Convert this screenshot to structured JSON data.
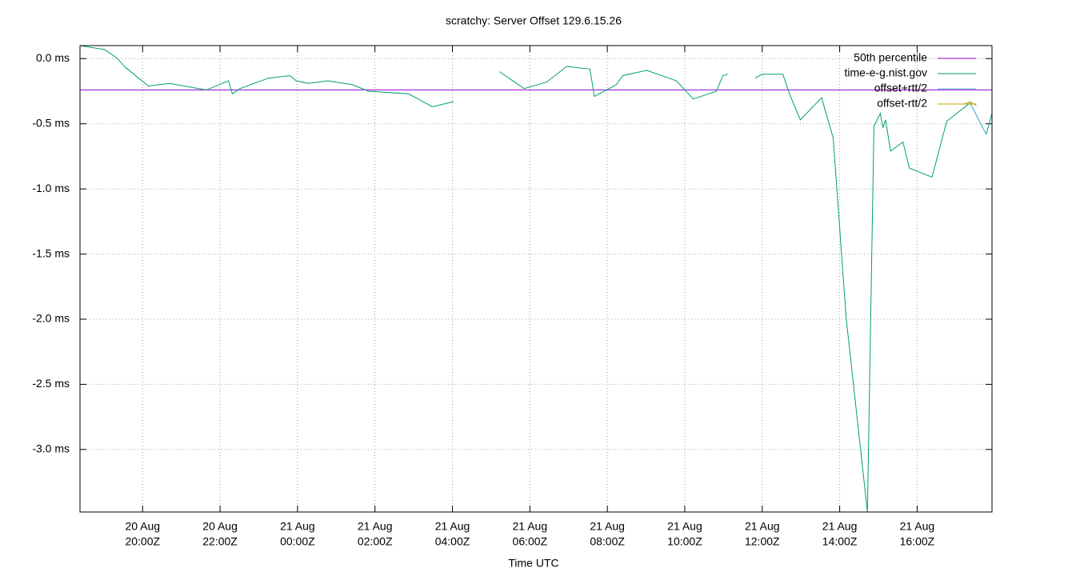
{
  "chart_data": {
    "type": "line",
    "title": "scratchy: Server Offset 129.6.15.26",
    "xlabel": "Time UTC",
    "xlim": [
      "20 Aug 18:23Z",
      "21 Aug 17:56Z"
    ],
    "xticks": [
      {
        "value": "20 Aug 20:00Z",
        "label": [
          "20 Aug",
          "20:00Z"
        ]
      },
      {
        "value": "20 Aug 22:00Z",
        "label": [
          "20 Aug",
          "22:00Z"
        ]
      },
      {
        "value": "21 Aug 00:00Z",
        "label": [
          "21 Aug",
          "00:00Z"
        ]
      },
      {
        "value": "21 Aug 02:00Z",
        "label": [
          "21 Aug",
          "02:00Z"
        ]
      },
      {
        "value": "21 Aug 04:00Z",
        "label": [
          "21 Aug",
          "04:00Z"
        ]
      },
      {
        "value": "21 Aug 06:00Z",
        "label": [
          "21 Aug",
          "06:00Z"
        ]
      },
      {
        "value": "21 Aug 08:00Z",
        "label": [
          "21 Aug",
          "08:00Z"
        ]
      },
      {
        "value": "21 Aug 10:00Z",
        "label": [
          "21 Aug",
          "10:00Z"
        ]
      },
      {
        "value": "21 Aug 12:00Z",
        "label": [
          "21 Aug",
          "12:00Z"
        ]
      },
      {
        "value": "21 Aug 14:00Z",
        "label": [
          "21 Aug",
          "14:00Z"
        ]
      },
      {
        "value": "21 Aug 16:00Z",
        "label": [
          "21 Aug",
          "16:00Z"
        ]
      }
    ],
    "ylim": [
      -3.48,
      0.1
    ],
    "yticks": [
      {
        "value": 0,
        "label": "0.0 ms"
      },
      {
        "value": -0.5,
        "label": "-0.5 ms"
      },
      {
        "value": -1,
        "label": "-1.0 ms"
      },
      {
        "value": -1.5,
        "label": "-1.5 ms"
      },
      {
        "value": -2,
        "label": "-2.0 ms"
      },
      {
        "value": -2.5,
        "label": "-2.5 ms"
      },
      {
        "value": -3,
        "label": "-3.0 ms"
      }
    ],
    "grid": true,
    "legend": "top-right",
    "series": [
      {
        "name": "50th percentile",
        "color": "#9400d3",
        "x": [
          "20 Aug 18:23Z",
          "21 Aug 17:56Z"
        ],
        "values": [
          -0.24,
          -0.24
        ]
      },
      {
        "name": "time-e-g.nist.gov",
        "color": "#009e73",
        "x": [
          "20 Aug 18:23Z",
          "20 Aug 19:01Z",
          "20 Aug 19:19Z",
          "20 Aug 19:34Z",
          "20 Aug 20:09Z",
          "20 Aug 20:42Z",
          "20 Aug 21:04Z",
          "20 Aug 21:39Z",
          "20 Aug 22:13Z",
          "20 Aug 22:19Z",
          "20 Aug 22:31Z",
          "20 Aug 23:15Z",
          "20 Aug 23:48Z",
          "20 Aug 23:58Z",
          "21 Aug 00:17Z",
          "21 Aug 00:47Z",
          "21 Aug 01:25Z",
          "21 Aug 01:50Z",
          "21 Aug 02:52Z",
          "21 Aug 03:29Z",
          "21 Aug 04:02Z",
          "21 Aug 04:40Z",
          "21 Aug 05:13Z",
          "21 Aug 05:51Z",
          "21 Aug 06:26Z",
          "21 Aug 06:57Z",
          "21 Aug 07:33Z",
          "21 Aug 07:40Z",
          "21 Aug 08:14Z",
          "21 Aug 08:24Z",
          "21 Aug 09:01Z",
          "21 Aug 09:47Z",
          "21 Aug 10:13Z",
          "21 Aug 10:49Z",
          "21 Aug 10:59Z",
          "21 Aug 11:07Z",
          "21 Aug 11:30Z",
          "21 Aug 11:49Z",
          "21 Aug 12:00Z",
          "21 Aug 12:32Z",
          "21 Aug 12:43Z",
          "21 Aug 12:59Z",
          "21 Aug 13:32Z",
          "21 Aug 13:50Z",
          "21 Aug 14:10Z",
          "21 Aug 14:43Z",
          "21 Aug 14:53Z",
          "21 Aug 15:03Z",
          "21 Aug 15:07Z",
          "21 Aug 15:11Z",
          "21 Aug 15:19Z",
          "21 Aug 15:38Z",
          "21 Aug 15:48Z",
          "21 Aug 16:23Z",
          "21 Aug 16:46Z",
          "21 Aug 17:22Z",
          "21 Aug 17:47Z",
          "21 Aug 17:56Z"
        ],
        "values": [
          0.1,
          0.07,
          0.01,
          -0.07,
          -0.21,
          -0.19,
          -0.21,
          -0.24,
          -0.17,
          -0.27,
          -0.23,
          -0.15,
          -0.13,
          -0.17,
          -0.19,
          -0.17,
          -0.2,
          -0.25,
          -0.27,
          -0.37,
          -0.33,
          null,
          -0.1,
          -0.23,
          -0.18,
          -0.06,
          -0.08,
          -0.29,
          -0.2,
          -0.13,
          -0.09,
          -0.17,
          -0.31,
          -0.25,
          -0.13,
          -0.12,
          null,
          -0.15,
          -0.12,
          -0.12,
          -0.28,
          -0.47,
          -0.3,
          -0.61,
          -1.99,
          -3.48,
          -0.52,
          -0.42,
          -0.53,
          -0.47,
          -0.71,
          -0.64,
          -0.84,
          -0.91,
          -0.48,
          -0.34,
          -0.58,
          -0.42
        ]
      },
      {
        "name": "offset+rtt/2",
        "color": "#56b4e9",
        "x": [
          "21 Aug 17:22Z",
          "21 Aug 17:47Z"
        ],
        "values": [
          -0.34,
          -0.58
        ]
      },
      {
        "name": "offset-rtt/2",
        "color": "#c0a000",
        "x": [
          "21 Aug 17:12Z",
          "21 Aug 17:22Z",
          "21 Aug 17:32Z"
        ],
        "values": [
          -0.35,
          -0.33,
          -0.36
        ]
      }
    ]
  }
}
